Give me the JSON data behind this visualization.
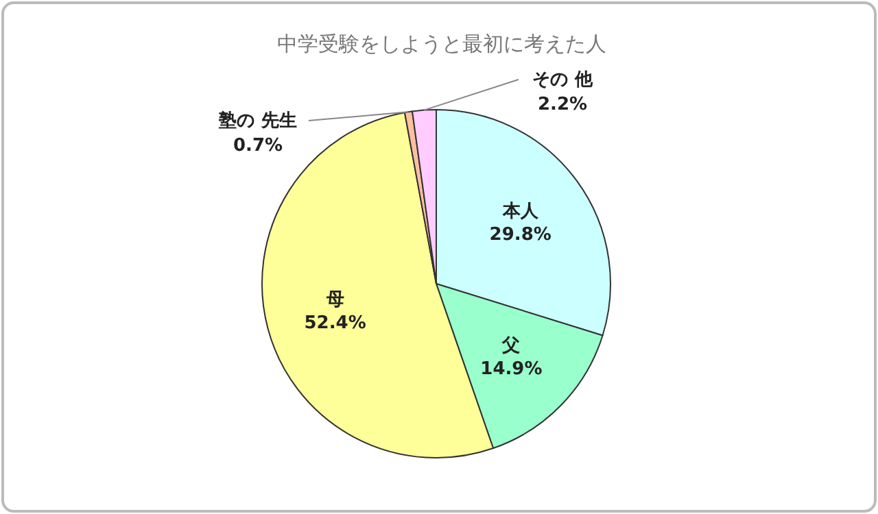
{
  "chart_data": {
    "type": "pie",
    "title": "中学受験をしようと最初に考えた人",
    "categories": [
      "本人",
      "父",
      "母",
      "塾の 先生",
      "その 他"
    ],
    "values": [
      29.8,
      14.9,
      52.4,
      0.7,
      2.2
    ],
    "value_labels": [
      "29.8%",
      "14.9%",
      "52.4%",
      "0.7%",
      "2.2%"
    ],
    "colors": [
      "#ccffff",
      "#99ffcc",
      "#ffff99",
      "#ffc0a0",
      "#ffccff"
    ]
  }
}
